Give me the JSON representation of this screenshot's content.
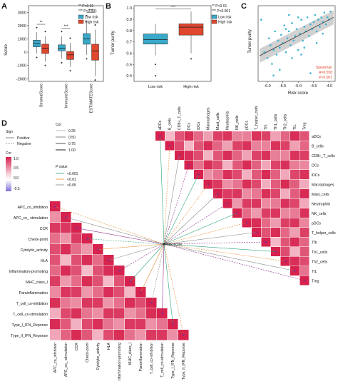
{
  "panels": {
    "A": {
      "letter": "A",
      "ylabel": "Score",
      "yticks": [
        3000,
        2000,
        1000,
        0,
        -1000,
        -2000
      ],
      "categories": [
        "StromalScore",
        "ImmuneScore",
        "ESTIMATEScore"
      ],
      "significance": [
        "**",
        "***",
        "***"
      ],
      "legend_notes": [
        "** P<0.01",
        "*** P<0.001"
      ],
      "legend": [
        "Low risk",
        "High risk"
      ]
    },
    "B": {
      "letter": "B",
      "ylabel": "Tumor purity",
      "yticks": [
        1.0,
        0.9,
        0.8,
        0.7,
        0.6,
        0.5,
        0.4
      ],
      "categories": [
        "Low risk",
        "High risk"
      ],
      "significance": "***",
      "legend_notes": [
        "** P<0.01",
        "*** P<0.001"
      ],
      "legend": [
        "Low risk",
        "High risk"
      ]
    },
    "C": {
      "letter": "C",
      "ylabel": "Tumor purity",
      "xlabel": "Risk score",
      "xticks": [
        -6.0,
        -5.5,
        -5.0,
        -4.5,
        -4.0
      ],
      "stats": [
        "Spearman",
        "R=0.558",
        "P<0.001"
      ]
    },
    "D": {
      "letter": "D",
      "legend_sign_title": "Sign",
      "legend_sign": [
        "Positive",
        "Negative"
      ],
      "legend_cor_title": "Cor",
      "legend_cor_vals": [
        "0.25",
        "0.50",
        "0.75",
        "1.00"
      ],
      "legend_colorbar_title": "Cor",
      "legend_colorbar_ticks": [
        "1.0",
        "0.5",
        "0.0",
        "-0.5"
      ],
      "legend_p_title": "P value",
      "legend_p": [
        "<0.001",
        "<0.01",
        "<0.05"
      ],
      "center_label": "Risk score",
      "immune_cells": [
        "aDCs",
        "B_cells",
        "CD8+_T_cells",
        "DCs",
        "iDCs",
        "Macrophages",
        "Mast_cells",
        "Neutrophils",
        "NK_cells",
        "pDCs",
        "T_helper_cells",
        "Tfh",
        "Th1_cells",
        "Th2_cells",
        "TIL",
        "Treg"
      ],
      "immune_functions": [
        "APC_co_inhibition",
        "APC_co_ stimulation",
        "CCR",
        "Check-point",
        "Cytolytic_activity",
        "HLA",
        "Inflammation-promoting",
        "MHC_class_I",
        "Parainflammation",
        "T_cell_co-inhibition",
        "T_cell_co-stimulation",
        "Type_I_IFN_Reponse",
        "Type_II_IFN_Reponse"
      ]
    }
  },
  "colors": {
    "low_risk": "#39a9c9",
    "high_risk": "#e0472f",
    "cor_high": "#d6224d",
    "cor_low": "#6a5ccd",
    "positive_green": "#2aa57a",
    "negative_purple": "#8c2a8c",
    "scatter": "#3fb3d4",
    "stats_text": "#e0472f"
  },
  "chart_data": [
    {
      "type": "box",
      "panel": "A",
      "categories": [
        "StromalScore",
        "ImmuneScore",
        "ESTIMATEScore"
      ],
      "ylim": [
        -2200,
        3500
      ],
      "series": [
        {
          "name": "Low risk",
          "boxes": [
            {
              "q1": 400,
              "median": 650,
              "q3": 900,
              "low": -100,
              "high": 1500
            },
            {
              "q1": 100,
              "median": 300,
              "q3": 550,
              "low": -500,
              "high": 1200
            },
            {
              "q1": 600,
              "median": 1000,
              "q3": 1400,
              "low": -200,
              "high": 2400
            }
          ]
        },
        {
          "name": "High risk",
          "boxes": [
            {
              "q1": -100,
              "median": 300,
              "q3": 600,
              "low": -700,
              "high": 1200
            },
            {
              "q1": -550,
              "median": -200,
              "q3": 50,
              "low": -1100,
              "high": 700
            },
            {
              "q1": -600,
              "median": 100,
              "q3": 600,
              "low": -1800,
              "high": 1700
            }
          ]
        }
      ]
    },
    {
      "type": "box",
      "panel": "B",
      "categories": [
        "Low risk",
        "High risk"
      ],
      "ylim": [
        0.35,
        1.02
      ],
      "boxes": [
        {
          "q1": 0.68,
          "median": 0.72,
          "q3": 0.77,
          "low": 0.58,
          "high": 0.86
        },
        {
          "q1": 0.76,
          "median": 0.83,
          "q3": 0.86,
          "low": 0.6,
          "high": 0.97
        }
      ]
    },
    {
      "type": "scatter",
      "panel": "C",
      "xlim": [
        -6.3,
        -3.8
      ],
      "ylim": [
        0.35,
        1.0
      ],
      "fit": {
        "x": [
          -6.25,
          -3.85
        ],
        "y": [
          0.57,
          0.9
        ]
      },
      "points": [
        [
          -6.2,
          0.88
        ],
        [
          -6.1,
          0.6
        ],
        [
          -6.0,
          0.55
        ],
        [
          -5.95,
          0.72
        ],
        [
          -5.9,
          0.66
        ],
        [
          -5.85,
          0.5
        ],
        [
          -5.8,
          0.62
        ],
        [
          -5.75,
          0.78
        ],
        [
          -5.7,
          0.58
        ],
        [
          -5.65,
          0.7
        ],
        [
          -5.6,
          0.64
        ],
        [
          -5.55,
          0.75
        ],
        [
          -5.5,
          0.68
        ],
        [
          -5.45,
          0.83
        ],
        [
          -5.4,
          0.6
        ],
        [
          -5.35,
          0.72
        ],
        [
          -5.3,
          0.78
        ],
        [
          -5.25,
          0.66
        ],
        [
          -5.2,
          0.85
        ],
        [
          -5.15,
          0.7
        ],
        [
          -5.1,
          0.74
        ],
        [
          -5.05,
          0.8
        ],
        [
          -5.0,
          0.62
        ],
        [
          -4.95,
          0.76
        ],
        [
          -4.9,
          0.88
        ],
        [
          -4.85,
          0.7
        ],
        [
          -4.8,
          0.82
        ],
        [
          -4.75,
          0.78
        ],
        [
          -4.7,
          0.9
        ],
        [
          -4.65,
          0.74
        ],
        [
          -4.6,
          0.84
        ],
        [
          -4.55,
          0.8
        ],
        [
          -4.5,
          0.86
        ],
        [
          -4.45,
          0.92
        ],
        [
          -4.4,
          0.78
        ],
        [
          -4.35,
          0.88
        ],
        [
          -4.3,
          0.82
        ],
        [
          -4.25,
          0.9
        ],
        [
          -4.2,
          0.86
        ],
        [
          -4.15,
          0.94
        ],
        [
          -4.1,
          0.84
        ],
        [
          -4.05,
          0.9
        ],
        [
          -4.0,
          0.88
        ],
        [
          -3.95,
          0.95
        ],
        [
          -5.6,
          0.45
        ],
        [
          -4.6,
          0.42
        ],
        [
          -5.2,
          0.55
        ],
        [
          -4.4,
          0.68
        ],
        [
          -5.0,
          0.9
        ],
        [
          -4.8,
          0.64
        ],
        [
          -5.4,
          0.8
        ],
        [
          -4.2,
          0.76
        ],
        [
          -5.8,
          0.4
        ],
        [
          -4.9,
          0.58
        ],
        [
          -5.3,
          0.92
        ]
      ]
    },
    {
      "type": "heatmap",
      "panel": "D",
      "triangles": [
        "immune_cells",
        "immune_functions"
      ],
      "values_encoding": "correlation",
      "rows": [
        "aDCs",
        "B_cells",
        "CD8+_T_cells",
        "DCs",
        "iDCs",
        "Macrophages",
        "Mast_cells",
        "Neutrophils",
        "NK_cells",
        "pDCs",
        "T_helper_cells",
        "Tfh",
        "Th1_cells",
        "Th2_cells",
        "TIL",
        "Treg"
      ],
      "rows2": [
        "APC_co_inhibition",
        "APC_co_ stimulation",
        "CCR",
        "Check-point",
        "Cytolytic_activity",
        "HLA",
        "Inflammation-promoting",
        "MHC_class_I",
        "Parainflammation",
        "T_cell_co-inhibition",
        "T_cell_co-stimulation",
        "Type_I_IFN_Reponse",
        "Type_II_IFN_Reponse"
      ]
    }
  ]
}
